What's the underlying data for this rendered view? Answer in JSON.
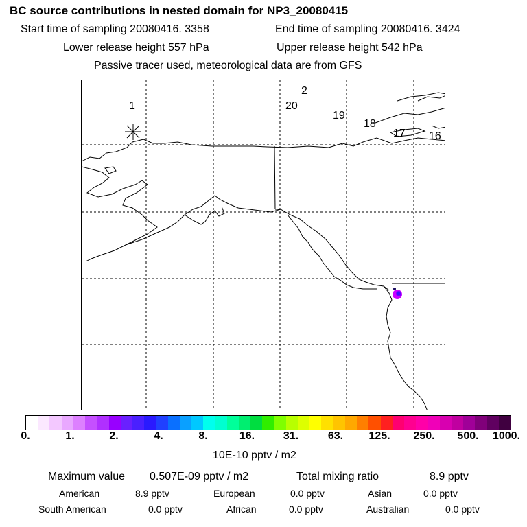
{
  "header": {
    "title": "BC  source contributions in nested domain for NP3_20080415",
    "start_time": "Start time of sampling 20080416.  3358",
    "end_time": "End time of sampling 20080416.  3424",
    "lower_height": "Lower release height  557 hPa",
    "upper_height": "Upper release height  542 hPa",
    "tracer_note": "Passive tracer used, meteorological data are from GFS"
  },
  "map": {
    "trajectory_labels": [
      "1",
      "2",
      "20",
      "19",
      "18",
      "17",
      "16"
    ],
    "release_marker": "asterisk",
    "plume_colors": [
      "#cc00ff",
      "#7a00ff",
      "#3a10ff",
      "#1a0a60"
    ]
  },
  "colorbar": {
    "colors": [
      "#ffffff",
      "#fbe8ff",
      "#f3c8ff",
      "#e9a8ff",
      "#dd80ff",
      "#c550ff",
      "#b030ff",
      "#9800ff",
      "#6a20ff",
      "#4a20ff",
      "#2a1aff",
      "#2040ff",
      "#0a70ff",
      "#0aa0ff",
      "#00c8ff",
      "#00ffee",
      "#00ffd0",
      "#00ff9a",
      "#00ee70",
      "#00dd40",
      "#30ee00",
      "#80ff00",
      "#b8ff00",
      "#ddff00",
      "#ffff00",
      "#ffe000",
      "#ffc400",
      "#ffa800",
      "#ff7f00",
      "#ff5000",
      "#ff2020",
      "#ff0070",
      "#ff0090",
      "#ff00a8",
      "#f000b8",
      "#d800b0",
      "#c000a0",
      "#a00098",
      "#80007a",
      "#600060",
      "#400040"
    ],
    "tick_labels": [
      "0.",
      "1.",
      "2.",
      "4.",
      "8.",
      "16.",
      "31.",
      "63.",
      "125.",
      "250.",
      "500.",
      "1000."
    ],
    "units": "10E-10 pptv / m2"
  },
  "stats": {
    "maximum_label": "Maximum value",
    "maximum_value": "0.507E-09 pptv / m2",
    "total_label": "Total mixing ratio",
    "total_value": "8.9 pptv",
    "regions": [
      {
        "name": "American",
        "value": "8.9 pptv"
      },
      {
        "name": "European",
        "value": "0.0 pptv"
      },
      {
        "name": "Asian",
        "value": "0.0 pptv"
      },
      {
        "name": "South American",
        "value": "0.0 pptv"
      },
      {
        "name": "African",
        "value": "0.0 pptv"
      },
      {
        "name": "Australian",
        "value": "0.0 pptv"
      }
    ]
  }
}
